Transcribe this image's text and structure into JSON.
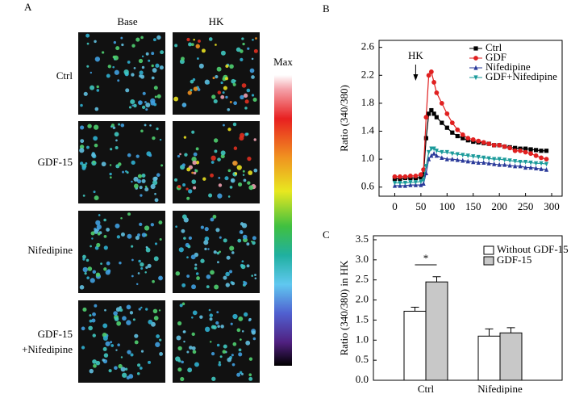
{
  "panel_a": {
    "label": "A",
    "columns": [
      "Base",
      "HK"
    ],
    "rows": [
      "Ctrl",
      "GDF-15",
      "Nifedipine",
      [
        "GDF-15",
        "+Nifedipine"
      ]
    ],
    "colorbar_label": "Max"
  },
  "chart_data": [
    {
      "type": "line",
      "panel_label": "B",
      "ylabel": "Ratio (340/380)",
      "annotation": "HK",
      "legend": "upper right",
      "xlim": [
        -30,
        320
      ],
      "xticks": [
        0,
        50,
        100,
        150,
        200,
        250,
        300
      ],
      "ylim": [
        0.47,
        2.7
      ],
      "yticks": [
        0.6,
        {
          "value": 1,
          "label": "1.0"
        },
        1.4,
        1.8,
        2.2,
        2.6
      ],
      "x": [
        0,
        10,
        20,
        30,
        40,
        50,
        55,
        60,
        65,
        70,
        75,
        80,
        90,
        100,
        110,
        120,
        130,
        140,
        150,
        160,
        170,
        180,
        190,
        200,
        210,
        220,
        230,
        240,
        250,
        260,
        270,
        280,
        290
      ],
      "series": [
        {
          "name": "Ctrl",
          "color": "#000000",
          "marker": "square",
          "values": [
            0.72,
            0.72,
            0.73,
            0.73,
            0.73,
            0.74,
            0.78,
            1.3,
            1.65,
            1.7,
            1.65,
            1.6,
            1.52,
            1.45,
            1.38,
            1.33,
            1.3,
            1.27,
            1.25,
            1.24,
            1.23,
            1.22,
            1.2,
            1.2,
            1.18,
            1.17,
            1.16,
            1.15,
            1.15,
            1.14,
            1.13,
            1.12,
            1.12
          ]
        },
        {
          "name": "GDF",
          "color": "#e02020",
          "marker": "circle",
          "values": [
            0.75,
            0.75,
            0.75,
            0.76,
            0.76,
            0.78,
            0.85,
            1.6,
            2.2,
            2.25,
            2.1,
            1.95,
            1.8,
            1.65,
            1.52,
            1.42,
            1.35,
            1.3,
            1.28,
            1.26,
            1.24,
            1.22,
            1.2,
            1.2,
            1.18,
            1.16,
            1.12,
            1.12,
            1.1,
            1.08,
            1.05,
            1.02,
            1.0
          ]
        },
        {
          "name": "Nifedipine",
          "color": "#2a3a9a",
          "marker": "triangle-up",
          "values": [
            0.62,
            0.62,
            0.62,
            0.63,
            0.63,
            0.63,
            0.65,
            0.8,
            1.0,
            1.05,
            1.08,
            1.05,
            1.02,
            1.0,
            1.0,
            0.99,
            0.98,
            0.97,
            0.96,
            0.95,
            0.95,
            0.94,
            0.93,
            0.92,
            0.92,
            0.91,
            0.9,
            0.9,
            0.88,
            0.88,
            0.87,
            0.86,
            0.85
          ]
        },
        {
          "name": "GDF+Nifedipine",
          "color": "#1a9a9a",
          "marker": "triangle-down",
          "values": [
            0.66,
            0.66,
            0.66,
            0.67,
            0.67,
            0.68,
            0.7,
            0.9,
            1.1,
            1.15,
            1.15,
            1.12,
            1.1,
            1.1,
            1.08,
            1.07,
            1.06,
            1.05,
            1.04,
            1.03,
            1.02,
            1.01,
            1.0,
            1.0,
            0.99,
            0.98,
            0.97,
            0.96,
            0.96,
            0.95,
            0.94,
            0.94,
            0.93
          ]
        }
      ]
    },
    {
      "type": "bar",
      "panel_label": "C",
      "ylabel": "Ratio (340/380) in HK",
      "annotation": "*",
      "legend": "upper right",
      "categories": [
        "Ctrl",
        "Nifedipine"
      ],
      "ylim": [
        0,
        3.6
      ],
      "yticks": [
        {
          "value": 0,
          "label": "0.0"
        },
        0.5,
        {
          "value": 1,
          "label": "1.0"
        },
        1.5,
        {
          "value": 2,
          "label": "2.0"
        },
        2.5,
        {
          "value": 3,
          "label": "3.0"
        },
        3.5
      ],
      "series": [
        {
          "name": "Without GDF-15",
          "color": "#ffffff",
          "values": [
            1.72,
            1.1
          ],
          "errors": [
            0.1,
            0.18
          ]
        },
        {
          "name": "GDF-15",
          "color": "#c8c8c8",
          "values": [
            2.45,
            1.18
          ],
          "errors": [
            0.13,
            0.13
          ]
        }
      ]
    }
  ]
}
